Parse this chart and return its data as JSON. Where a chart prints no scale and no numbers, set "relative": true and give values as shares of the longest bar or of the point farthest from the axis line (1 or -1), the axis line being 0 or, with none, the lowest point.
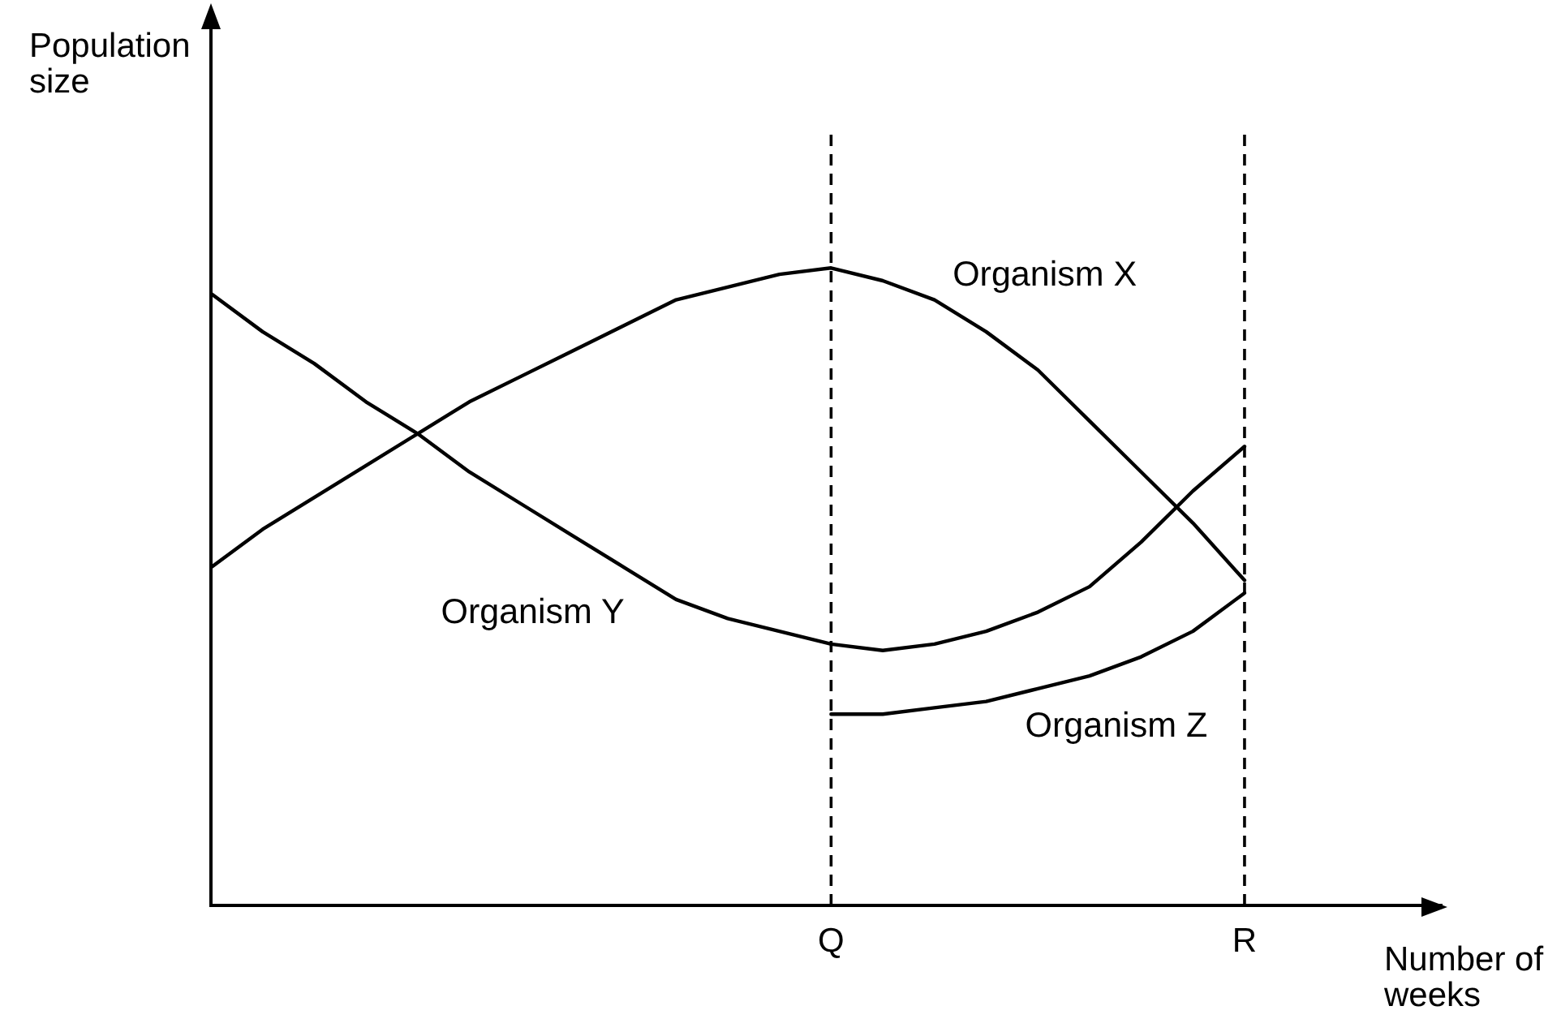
{
  "chart_data": {
    "type": "line",
    "xlabel": "Number of weeks",
    "ylabel": "Population size",
    "relative": true,
    "categories": [
      null,
      null,
      null,
      null,
      null,
      null,
      null,
      null,
      null,
      null,
      null,
      null,
      "Q",
      null,
      null,
      null,
      null,
      null,
      null,
      null,
      "R"
    ],
    "series": [
      {
        "name": "Organism X",
        "color": "#000000",
        "values": [
          0.53,
          0.59,
          0.64,
          0.69,
          0.74,
          0.79,
          0.83,
          0.87,
          0.91,
          0.95,
          0.97,
          0.99,
          1.0,
          0.98,
          0.95,
          0.9,
          0.84,
          0.76,
          0.68,
          0.6,
          0.51
        ]
      },
      {
        "name": "Organism Y",
        "color": "#000000",
        "values": [
          0.96,
          0.9,
          0.85,
          0.79,
          0.74,
          0.68,
          0.63,
          0.58,
          0.53,
          0.48,
          0.45,
          0.43,
          0.41,
          0.4,
          0.41,
          0.43,
          0.46,
          0.5,
          0.57,
          0.65,
          0.72
        ]
      },
      {
        "name": "Organism Z",
        "color": "#000000",
        "values": [
          null,
          null,
          null,
          null,
          null,
          null,
          null,
          null,
          null,
          null,
          null,
          null,
          0.3,
          0.3,
          0.31,
          0.32,
          0.34,
          0.36,
          0.39,
          0.43,
          0.49
        ]
      }
    ],
    "ref_lines": [
      {
        "axis": "x",
        "value": "Q",
        "line_style": "dashed",
        "color": "#000000"
      },
      {
        "axis": "x",
        "value": "R",
        "line_style": "dashed",
        "color": "#000000"
      }
    ],
    "grid": false,
    "legend": false,
    "marker": "none",
    "line_style": "solid"
  }
}
